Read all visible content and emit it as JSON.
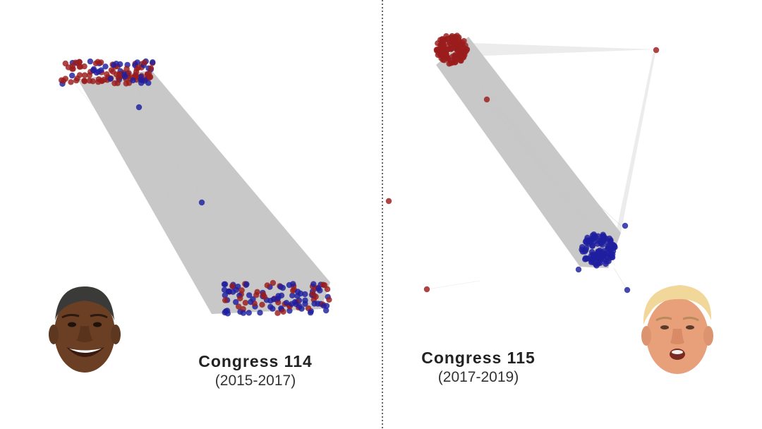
{
  "panels": [
    {
      "title": "Congress 114",
      "years": "(2015-2017)",
      "portrait": "obama-portrait"
    },
    {
      "title": "Congress 115",
      "years": "(2017-2019)",
      "portrait": "trump-portrait"
    }
  ],
  "colors": {
    "republican": "#9b1c1c",
    "democrat": "#1f1fa0",
    "edge": "#c8c8c8",
    "divider": "#333333"
  }
}
